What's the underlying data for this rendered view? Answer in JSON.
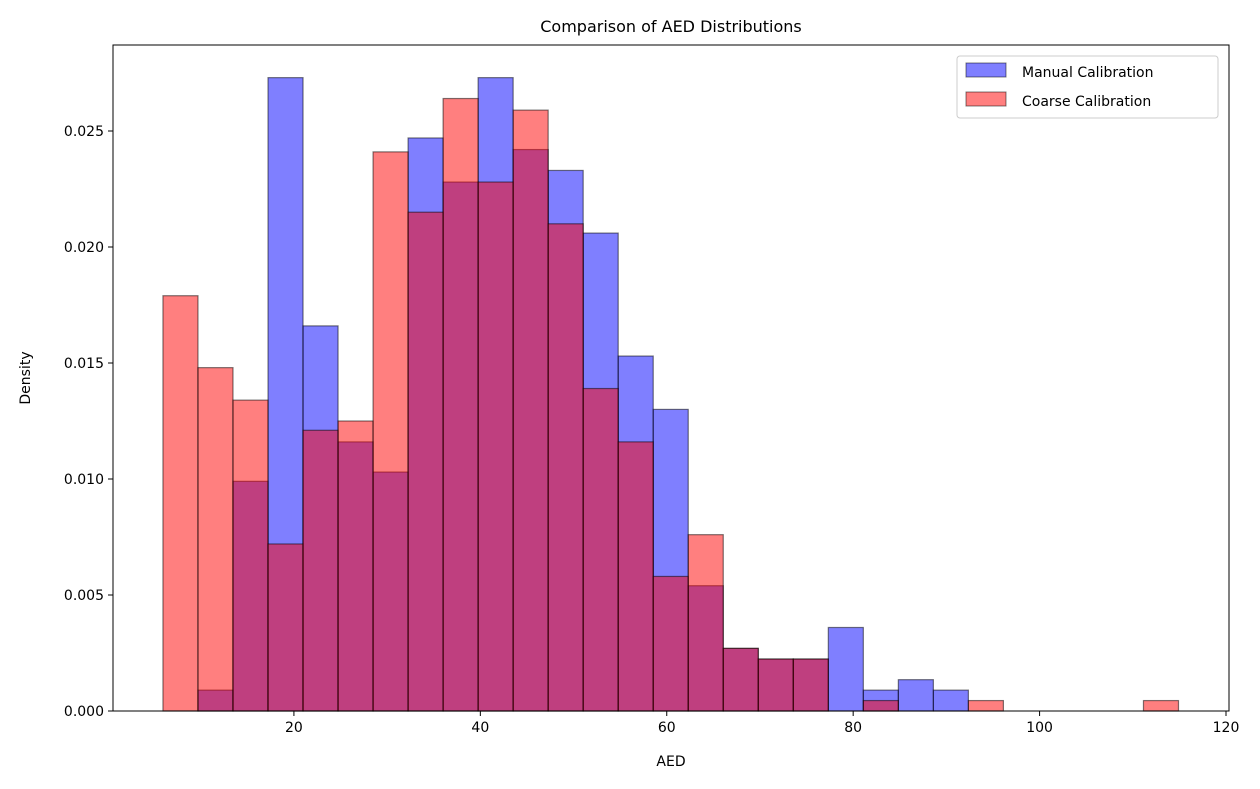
{
  "chart_data": {
    "type": "bar",
    "title": "Comparison of AED Distributions",
    "xlabel": "AED",
    "ylabel": "Density",
    "xlim": [
      0,
      120
    ],
    "ylim": [
      0,
      0.0287
    ],
    "xticks": [
      20,
      40,
      60,
      80,
      100,
      120
    ],
    "yticks": [
      "0.000",
      "0.005",
      "0.010",
      "0.015",
      "0.020",
      "0.025"
    ],
    "grid": false,
    "legend_position": "top-right",
    "bin_start": 5.95,
    "bin_width": 3.757,
    "series": [
      {
        "name": "Manual Calibration",
        "color": "#0000ff",
        "alpha": 0.5,
        "values": [
          0,
          0.0009,
          0.0099,
          0.0273,
          0.0166,
          0.0116,
          0.0103,
          0.0247,
          0.0228,
          0.0273,
          0.0242,
          0.0233,
          0.0206,
          0.0153,
          0.013,
          0.0054,
          0.0027,
          0.00224,
          0.00224,
          0.0036,
          0.0009,
          0.00135,
          0.0009,
          0,
          0,
          0,
          0,
          0,
          0
        ]
      },
      {
        "name": "Coarse Calibration",
        "color": "#ff0000",
        "alpha": 0.5,
        "values": [
          0.0179,
          0.0148,
          0.0134,
          0.0072,
          0.0121,
          0.0125,
          0.0241,
          0.0215,
          0.0264,
          0.0228,
          0.0259,
          0.021,
          0.0139,
          0.0116,
          0.0058,
          0.0076,
          0.0027,
          0.00224,
          0.00224,
          0,
          0.00045,
          0,
          0,
          0.00045,
          0,
          0,
          0,
          0,
          0.00045
        ]
      }
    ]
  }
}
